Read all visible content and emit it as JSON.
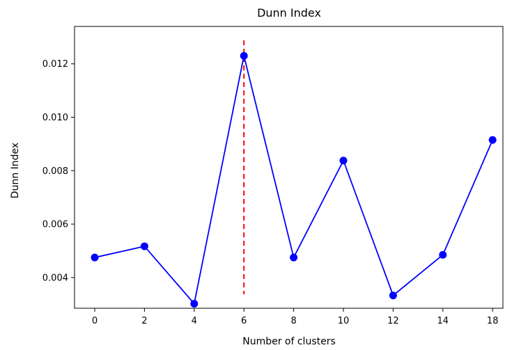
{
  "chart_data": {
    "type": "line",
    "title": "Dunn Index",
    "xlabel": "Number of clusters",
    "ylabel": "Dunn Index",
    "x_tick_labels": [
      "0",
      "2",
      "4",
      "6",
      "8",
      "10",
      "12",
      "14",
      "18"
    ],
    "y_ticks": [
      0.004,
      0.006,
      0.008,
      0.01,
      0.012
    ],
    "y_tick_labels": [
      "0.004",
      "0.006",
      "0.008",
      "0.010",
      "0.012"
    ],
    "ylim": [
      0.00285,
      0.0134
    ],
    "series": [
      {
        "color": "#0000ff",
        "marker": "circle",
        "x": [
          "0",
          "2",
          "4",
          "6",
          "8",
          "10",
          "12",
          "14",
          "18"
        ],
        "y": [
          0.00475,
          0.00517,
          0.00302,
          0.0123,
          0.00475,
          0.00838,
          0.00333,
          0.00485,
          0.00915
        ]
      }
    ],
    "reference_line": {
      "orientation": "vertical",
      "x": "6",
      "color": "#ff0000",
      "style": "dashed"
    },
    "grid": false,
    "legend": "none"
  }
}
